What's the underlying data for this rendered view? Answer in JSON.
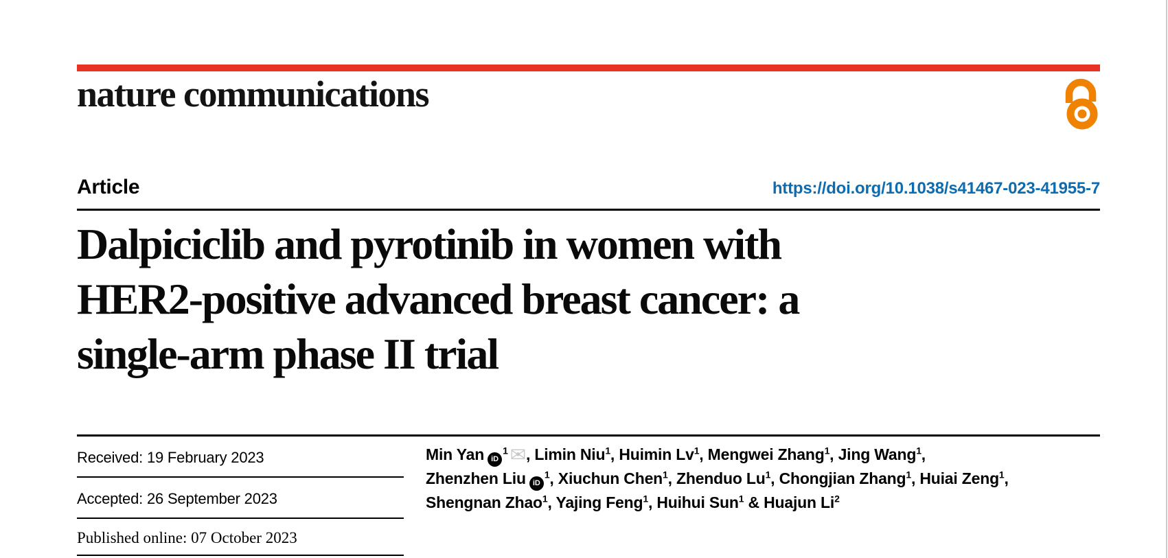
{
  "colors": {
    "brand_red": "#e63323",
    "link_blue": "#0d6cb0",
    "oa_orange": "#ef8200",
    "rule_black": "#000000",
    "envelope_gray": "#c9c9c9"
  },
  "masthead": {
    "journal_name": "nature communications",
    "open_access_icon": "open-access-icon"
  },
  "article_bar": {
    "type_label": "Article",
    "doi": "https://doi.org/10.1038/s41467-023-41955-7"
  },
  "title_lines": [
    "Dalpiciclib and pyrotinib in women with",
    "HER2-positive advanced breast cancer: a",
    "single-arm phase II trial"
  ],
  "dates": {
    "received": {
      "label": "Received:",
      "value": "19 February 2023"
    },
    "accepted": {
      "label": "Accepted:",
      "value": "26 September 2023"
    },
    "published": {
      "label": "Published online:",
      "value": "07 October 2023"
    }
  },
  "authors": {
    "orcid_icon_label": "iD",
    "envelope_icon_glyph": "✉",
    "lines": [
      [
        {
          "name": "Min Yan",
          "orcid": true,
          "sup": "1",
          "envelope": true,
          "tail": ", "
        },
        {
          "name": "Limin Niu",
          "sup": "1",
          "tail": ", "
        },
        {
          "name": "Huimin Lv",
          "sup": "1",
          "tail": ", "
        },
        {
          "name": "Mengwei Zhang",
          "sup": "1",
          "tail": ", "
        },
        {
          "name": "Jing Wang",
          "sup": "1",
          "tail": ","
        }
      ],
      [
        {
          "name": "Zhenzhen Liu",
          "orcid": true,
          "sup": "1",
          "tail": ", "
        },
        {
          "name": "Xiuchun Chen",
          "sup": "1",
          "tail": ", "
        },
        {
          "name": "Zhenduo Lu",
          "sup": "1",
          "tail": ", "
        },
        {
          "name": "Chongjian Zhang",
          "sup": "1",
          "tail": ", "
        },
        {
          "name": "Huiai Zeng",
          "sup": "1",
          "tail": ","
        }
      ],
      [
        {
          "name": "Shengnan Zhao",
          "sup": "1",
          "tail": ", "
        },
        {
          "name": "Yajing Feng",
          "sup": "1",
          "tail": ", "
        },
        {
          "name": "Huihui Sun",
          "sup": "1",
          "tail": " & "
        },
        {
          "name": "Huajun Li",
          "sup": "2",
          "tail": ""
        }
      ]
    ]
  }
}
